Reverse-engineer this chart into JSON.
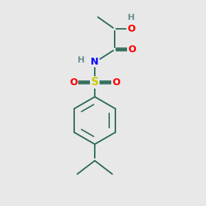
{
  "bg_color": "#ebebeb",
  "atom_colors": {
    "C": "#3a3a3a",
    "H": "#6b8f8f",
    "N": "#0000ff",
    "O": "#ff0000",
    "S": "#cccc00"
  },
  "bond_color": "#2d6b5a",
  "bond_width": 1.5,
  "fig_bg": "#e8e8e8"
}
